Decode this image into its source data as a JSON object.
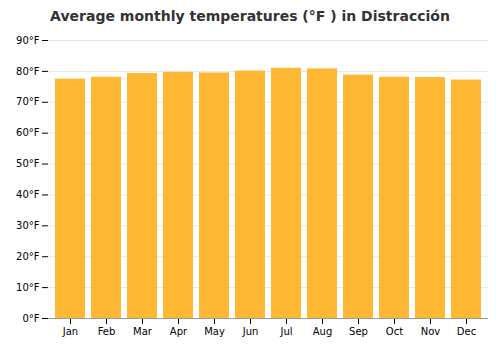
{
  "chart_data": {
    "type": "bar",
    "title": "Average monthly temperatures (°F ) in Distracción",
    "categories": [
      "Jan",
      "Feb",
      "Mar",
      "Apr",
      "May",
      "Jun",
      "Jul",
      "Aug",
      "Sep",
      "Oct",
      "Nov",
      "Dec"
    ],
    "values": [
      77.5,
      78.1,
      79.3,
      79.7,
      79.5,
      80.1,
      81.0,
      80.8,
      78.8,
      78.1,
      78.0,
      77.2
    ],
    "color": "#FFB833",
    "ylim": [
      0,
      90
    ],
    "yticks": [
      {
        "value": 0,
        "label": "0°F"
      },
      {
        "value": 10,
        "label": "10°F"
      },
      {
        "value": 20,
        "label": "20°F"
      },
      {
        "value": 30,
        "label": "30°F"
      },
      {
        "value": 40,
        "label": "40°F"
      },
      {
        "value": 50,
        "label": "50°F"
      },
      {
        "value": 60,
        "label": "60°F"
      },
      {
        "value": 70,
        "label": "70°F"
      },
      {
        "value": 80,
        "label": "80°F"
      },
      {
        "value": 90,
        "label": "90°F"
      }
    ],
    "grid": true
  }
}
